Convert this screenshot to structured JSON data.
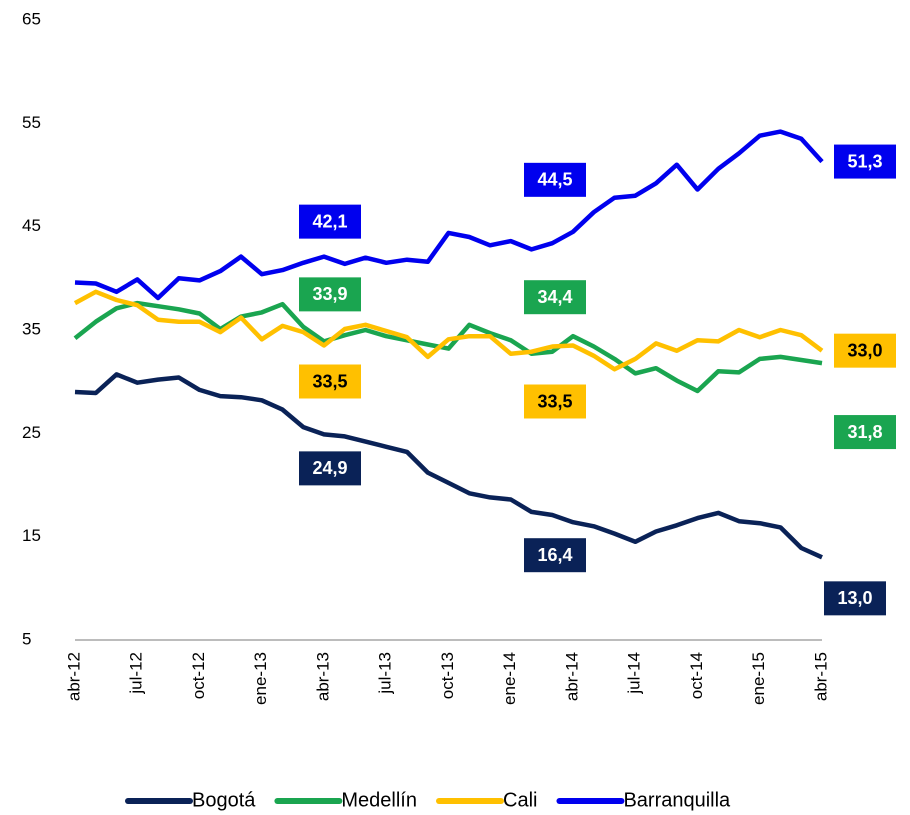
{
  "chart_data": {
    "type": "line",
    "categories": [
      "abr-12",
      null,
      null,
      "jul-12",
      null,
      null,
      "oct-12",
      null,
      null,
      "ene-13",
      null,
      null,
      "abr-13",
      null,
      null,
      "jul-13",
      null,
      null,
      "oct-13",
      null,
      null,
      "ene-14",
      null,
      null,
      "abr-14",
      null,
      null,
      "jul-14",
      null,
      null,
      "oct-14",
      null,
      null,
      "ene-15",
      null,
      null,
      "abr-15"
    ],
    "ylim": [
      5,
      65
    ],
    "yticks": [
      5,
      15,
      25,
      35,
      45,
      55,
      65
    ],
    "grid": false,
    "legend": "bottom",
    "series": [
      {
        "name": "Bogotá",
        "color": "#0a2257",
        "label_text_color": "#ffffff",
        "values": [
          29.0,
          28.9,
          30.7,
          29.9,
          30.2,
          30.4,
          29.2,
          28.6,
          28.5,
          28.2,
          27.3,
          25.6,
          24.9,
          24.7,
          24.2,
          23.7,
          23.2,
          21.2,
          20.2,
          19.2,
          18.8,
          18.6,
          17.4,
          17.1,
          16.4,
          16.0,
          15.3,
          14.5,
          15.5,
          16.1,
          16.8,
          17.3,
          16.5,
          16.3,
          15.9,
          13.9,
          13.0
        ],
        "value_labels": [
          null,
          null,
          null,
          null,
          null,
          null,
          null,
          null,
          null,
          null,
          null,
          null,
          "24,9",
          null,
          null,
          null,
          null,
          null,
          null,
          null,
          null,
          null,
          null,
          null,
          "16,4",
          null,
          null,
          null,
          null,
          null,
          null,
          null,
          null,
          null,
          null,
          null,
          "13,0"
        ]
      },
      {
        "name": "Medellín",
        "color": "#1aa550",
        "label_text_color": "#ffffff",
        "values": [
          34.2,
          35.8,
          37.1,
          37.6,
          37.3,
          37.0,
          36.6,
          35.1,
          36.3,
          36.7,
          37.5,
          35.3,
          33.9,
          34.5,
          35.0,
          34.4,
          34.0,
          33.6,
          33.2,
          35.5,
          34.7,
          34.0,
          32.7,
          32.9,
          34.4,
          33.4,
          32.2,
          30.8,
          31.3,
          30.1,
          29.1,
          31.0,
          30.9,
          32.2,
          32.4,
          32.1,
          31.8
        ],
        "value_labels": [
          null,
          null,
          null,
          null,
          null,
          null,
          null,
          null,
          null,
          null,
          null,
          null,
          "33,9",
          null,
          null,
          null,
          null,
          null,
          null,
          null,
          null,
          null,
          null,
          null,
          "34,4",
          null,
          null,
          null,
          null,
          null,
          null,
          null,
          null,
          null,
          null,
          null,
          "31,8"
        ]
      },
      {
        "name": "Cali",
        "color": "#ffc000",
        "label_text_color": "#000000",
        "values": [
          37.6,
          38.7,
          37.9,
          37.4,
          36.0,
          35.8,
          35.8,
          34.8,
          36.2,
          34.1,
          35.4,
          34.8,
          33.5,
          35.1,
          35.5,
          34.9,
          34.3,
          32.4,
          34.1,
          34.4,
          34.4,
          32.7,
          32.9,
          33.4,
          33.5,
          32.5,
          31.2,
          32.2,
          33.7,
          33.0,
          34.0,
          33.9,
          35.0,
          34.3,
          35.0,
          34.5,
          33.0
        ],
        "value_labels": [
          null,
          null,
          null,
          null,
          null,
          null,
          null,
          null,
          null,
          null,
          null,
          null,
          "33,5",
          null,
          null,
          null,
          null,
          null,
          null,
          null,
          null,
          null,
          null,
          null,
          "33,5",
          null,
          null,
          null,
          null,
          null,
          null,
          null,
          null,
          null,
          null,
          null,
          "33,0"
        ]
      },
      {
        "name": "Barranquilla",
        "color": "#0000ee",
        "label_text_color": "#ffffff",
        "values": [
          39.6,
          39.5,
          38.7,
          39.9,
          38.1,
          40.0,
          39.8,
          40.7,
          42.1,
          40.4,
          40.8,
          41.5,
          42.1,
          41.4,
          42.0,
          41.5,
          41.8,
          41.6,
          44.4,
          44.0,
          43.2,
          43.6,
          42.8,
          43.4,
          44.5,
          46.4,
          47.8,
          48.0,
          49.2,
          51.0,
          48.6,
          50.6,
          52.1,
          53.8,
          54.2,
          53.5,
          51.3
        ],
        "value_labels": [
          null,
          null,
          null,
          null,
          null,
          null,
          null,
          null,
          null,
          null,
          null,
          null,
          "42,1",
          null,
          null,
          null,
          null,
          null,
          null,
          null,
          null,
          null,
          null,
          null,
          "44,5",
          null,
          null,
          null,
          null,
          null,
          null,
          null,
          null,
          null,
          null,
          null,
          "51,3"
        ]
      }
    ]
  }
}
